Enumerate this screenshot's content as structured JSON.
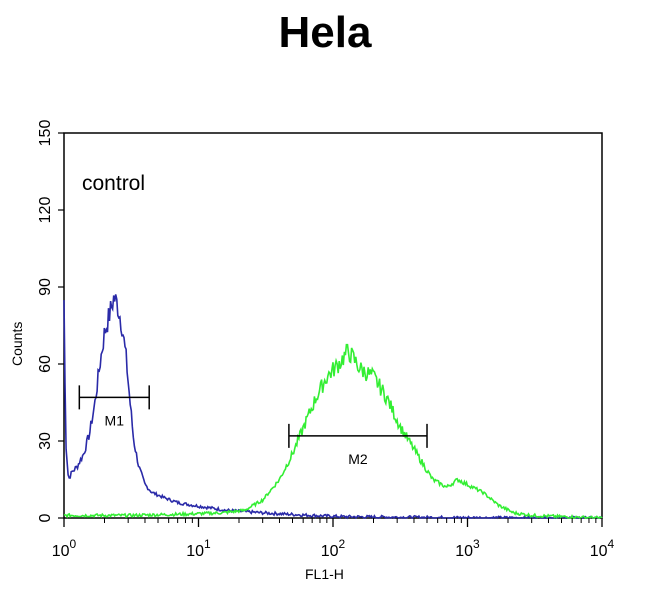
{
  "chart_data": {
    "type": "line",
    "title": "Hela",
    "xlabel": "FL1-H",
    "ylabel": "Counts",
    "x_scale": "log",
    "xlim": [
      1,
      10000
    ],
    "ylim": [
      0,
      150
    ],
    "x_ticks": [
      {
        "base": "10",
        "exp": "0",
        "value": 1
      },
      {
        "base": "10",
        "exp": "1",
        "value": 10
      },
      {
        "base": "10",
        "exp": "2",
        "value": 100
      },
      {
        "base": "10",
        "exp": "3",
        "value": 1000
      },
      {
        "base": "10",
        "exp": "4",
        "value": 10000
      }
    ],
    "y_ticks": [
      "0",
      "30",
      "60",
      "90",
      "120",
      "150"
    ],
    "annotation": "control",
    "gates": [
      {
        "label": "M1",
        "x_start": 1.3,
        "x_end": 4.3,
        "y": 47
      },
      {
        "label": "M2",
        "x_start": 47,
        "x_end": 500,
        "y": 32
      }
    ],
    "series": [
      {
        "color": "#2a2aa8",
        "points": [
          [
            1.0,
            85
          ],
          [
            1.03,
            30
          ],
          [
            1.08,
            15
          ],
          [
            1.15,
            18
          ],
          [
            1.25,
            20
          ],
          [
            1.4,
            25
          ],
          [
            1.55,
            33
          ],
          [
            1.7,
            45
          ],
          [
            1.85,
            60
          ],
          [
            2.0,
            72
          ],
          [
            2.2,
            80
          ],
          [
            2.35,
            86
          ],
          [
            2.5,
            83
          ],
          [
            2.7,
            75
          ],
          [
            2.9,
            62
          ],
          [
            3.1,
            45
          ],
          [
            3.3,
            30
          ],
          [
            3.6,
            20
          ],
          [
            4.0,
            13
          ],
          [
            4.5,
            10
          ],
          [
            5.5,
            8
          ],
          [
            7,
            6
          ],
          [
            9,
            5
          ],
          [
            12,
            4
          ],
          [
            16,
            3
          ],
          [
            22,
            2.5
          ],
          [
            30,
            2
          ],
          [
            45,
            1.5
          ],
          [
            70,
            1
          ],
          [
            120,
            0.5
          ],
          [
            300,
            0.3
          ],
          [
            1000,
            0.1
          ],
          [
            10000,
            0
          ]
        ]
      },
      {
        "color": "#33ee33",
        "points": [
          [
            1.0,
            1
          ],
          [
            3,
            1
          ],
          [
            8,
            1.5
          ],
          [
            15,
            2
          ],
          [
            22,
            3
          ],
          [
            30,
            7
          ],
          [
            40,
            15
          ],
          [
            50,
            25
          ],
          [
            60,
            35
          ],
          [
            75,
            47
          ],
          [
            90,
            55
          ],
          [
            110,
            60
          ],
          [
            130,
            65
          ],
          [
            160,
            58
          ],
          [
            200,
            55
          ],
          [
            250,
            47
          ],
          [
            320,
            35
          ],
          [
            420,
            25
          ],
          [
            550,
            15
          ],
          [
            700,
            12
          ],
          [
            850,
            15
          ],
          [
            1000,
            13
          ],
          [
            1300,
            10
          ],
          [
            1700,
            5
          ],
          [
            2200,
            2
          ],
          [
            3000,
            1
          ],
          [
            5000,
            0.5
          ],
          [
            10000,
            0
          ]
        ]
      }
    ]
  }
}
